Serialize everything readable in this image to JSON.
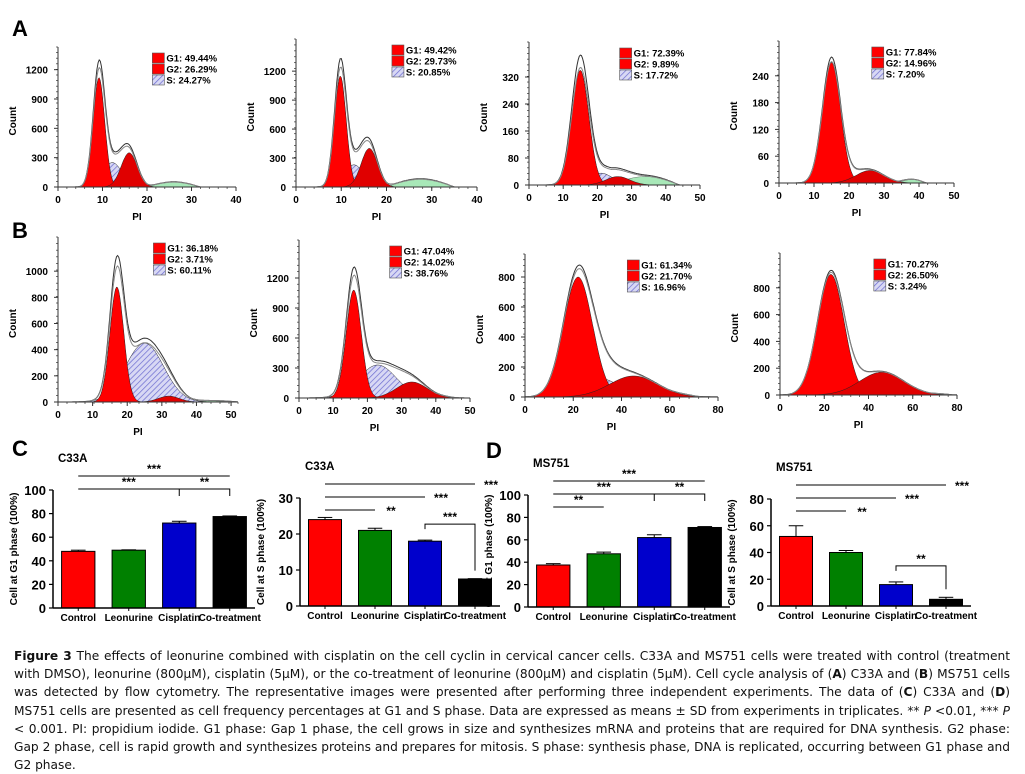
{
  "figure": {
    "panel_letters": [
      "A",
      "B",
      "C",
      "D"
    ]
  },
  "chart_data": [
    {
      "id": "A1",
      "panel": "A",
      "type": "area",
      "title": "",
      "xlabel": "PI",
      "ylabel": "Count",
      "xlim": [
        0,
        40
      ],
      "ylim": [
        0,
        1350
      ],
      "xticks": [
        0,
        10,
        20,
        30,
        40
      ],
      "yticks": [
        0,
        300,
        600,
        900,
        1200
      ],
      "legend": [
        {
          "label": "G1: 49.44%",
          "pattern": "solid-red"
        },
        {
          "label": "G2: 26.29%",
          "pattern": "solid-red"
        },
        {
          "label": "S: 24.27%",
          "pattern": "hatched-blue"
        }
      ],
      "components": {
        "g1": {
          "mean": 9.2,
          "sd": 1.3,
          "peak": 1120
        },
        "g2": {
          "mean": 16,
          "sd": 1.8,
          "peak": 350
        },
        "s": {
          "mean": 12.2,
          "sd": 2.2,
          "peak": 250
        },
        "debris": {
          "from": 20,
          "to": 32,
          "level": 50
        }
      },
      "envelope_peak": 1300
    },
    {
      "id": "A2",
      "panel": "A",
      "type": "area",
      "title": "",
      "xlabel": "PI",
      "ylabel": "Count",
      "xlim": [
        0,
        40
      ],
      "ylim": [
        0,
        1450
      ],
      "xticks": [
        0,
        10,
        20,
        30,
        40
      ],
      "yticks": [
        0,
        300,
        600,
        900,
        1200
      ],
      "legend": [
        {
          "label": "G1: 49.42%",
          "pattern": "solid-red"
        },
        {
          "label": "G2: 29.73%",
          "pattern": "solid-red"
        },
        {
          "label": "S: 20.85%",
          "pattern": "hatched-blue"
        }
      ],
      "components": {
        "g1": {
          "mean": 9.8,
          "sd": 1.3,
          "peak": 1150
        },
        "g2": {
          "mean": 16.2,
          "sd": 1.8,
          "peak": 400
        },
        "s": {
          "mean": 12.8,
          "sd": 2.2,
          "peak": 230
        },
        "debris": {
          "from": 20,
          "to": 35,
          "level": 80
        }
      },
      "envelope_peak": 1330
    },
    {
      "id": "A3",
      "panel": "A",
      "type": "area",
      "title": "",
      "xlabel": "PI",
      "ylabel": "Count",
      "xlim": [
        0,
        50
      ],
      "ylim": [
        0,
        400
      ],
      "xticks": [
        0,
        10,
        20,
        30,
        40,
        50
      ],
      "yticks": [
        0,
        80,
        160,
        240,
        320
      ],
      "legend": [
        {
          "label": "G1: 72.39%",
          "pattern": "solid-red"
        },
        {
          "label": "G2: 9.89%",
          "pattern": "solid-red"
        },
        {
          "label": "S: 17.72%",
          "pattern": "hatched-blue"
        }
      ],
      "components": {
        "g1": {
          "mean": 15,
          "sd": 2.5,
          "peak": 340
        },
        "g2": {
          "mean": 26,
          "sd": 3.5,
          "peak": 25
        },
        "s": {
          "mean": 21,
          "sd": 3.5,
          "peak": 35
        },
        "debris": {
          "from": 24,
          "to": 44,
          "level": 25
        }
      },
      "envelope_peak": 385
    },
    {
      "id": "A4",
      "panel": "A",
      "type": "area",
      "title": "",
      "xlabel": "PI",
      "ylabel": "Count",
      "xlim": [
        0,
        50
      ],
      "ylim": [
        0,
        300
      ],
      "xticks": [
        0,
        10,
        20,
        30,
        40,
        50
      ],
      "yticks": [
        0,
        60,
        120,
        180,
        240
      ],
      "legend": [
        {
          "label": "G1: 77.84%",
          "pattern": "solid-red"
        },
        {
          "label": "G2: 14.96%",
          "pattern": "solid-red"
        },
        {
          "label": "S: 7.20%",
          "pattern": "hatched-blue"
        }
      ],
      "components": {
        "g1": {
          "mean": 15,
          "sd": 2.6,
          "peak": 270
        },
        "g2": {
          "mean": 26,
          "sd": 4,
          "peak": 28
        },
        "s": {
          "mean": 21,
          "sd": 3,
          "peak": 8
        },
        "debris": {
          "from": 34,
          "to": 42,
          "level": 8
        }
      },
      "envelope_peak": 282
    },
    {
      "id": "B1",
      "panel": "B",
      "type": "area",
      "title": "",
      "xlabel": "PI",
      "ylabel": "Count",
      "xlim": [
        0,
        52
      ],
      "ylim": [
        0,
        1200
      ],
      "xticks": [
        0,
        10,
        20,
        30,
        40,
        50
      ],
      "yticks": [
        0,
        200,
        400,
        600,
        800,
        1000
      ],
      "legend": [
        {
          "label": "G1: 36.18%",
          "pattern": "solid-red"
        },
        {
          "label": "G2: 3.71%",
          "pattern": "solid-red"
        },
        {
          "label": "S: 60.11%",
          "pattern": "hatched-blue"
        }
      ],
      "components": {
        "g1": {
          "mean": 17,
          "sd": 2,
          "peak": 880
        },
        "g2": {
          "mean": 32,
          "sd": 3,
          "peak": 45
        },
        "s": {
          "mean": 25,
          "sd": 5.5,
          "peak": 450
        },
        "debris": {
          "from": 38,
          "to": 52,
          "level": 10
        }
      },
      "envelope_peak": 1120
    },
    {
      "id": "B2",
      "panel": "B",
      "type": "area",
      "title": "",
      "xlabel": "PI",
      "ylabel": "Count",
      "xlim": [
        0,
        50
      ],
      "ylim": [
        0,
        1500
      ],
      "xticks": [
        0,
        10,
        20,
        30,
        40,
        50
      ],
      "yticks": [
        0,
        300,
        600,
        900,
        1200
      ],
      "legend": [
        {
          "label": "G1: 47.04%",
          "pattern": "solid-red"
        },
        {
          "label": "G2: 14.02%",
          "pattern": "solid-red"
        },
        {
          "label": "S: 38.76%",
          "pattern": "hatched-blue"
        }
      ],
      "components": {
        "g1": {
          "mean": 16,
          "sd": 2.2,
          "peak": 1080
        },
        "g2": {
          "mean": 33,
          "sd": 4.5,
          "peak": 160
        },
        "s": {
          "mean": 23,
          "sd": 5.5,
          "peak": 330
        },
        "debris": {
          "from": 40,
          "to": 46,
          "level": 5
        }
      },
      "envelope_peak": 1310
    },
    {
      "id": "B3",
      "panel": "B",
      "type": "area",
      "title": "",
      "xlabel": "PI",
      "ylabel": "Count",
      "xlim": [
        0,
        80
      ],
      "ylim": [
        0,
        900
      ],
      "xticks": [
        0,
        20,
        40,
        60,
        80
      ],
      "yticks": [
        0,
        200,
        400,
        600,
        800
      ],
      "legend": [
        {
          "label": "G1: 61.34%",
          "pattern": "solid-red"
        },
        {
          "label": "G2: 21.70%",
          "pattern": "solid-red"
        },
        {
          "label": "S: 16.96%",
          "pattern": "hatched-blue"
        }
      ],
      "components": {
        "g1": {
          "mean": 22,
          "sd": 6,
          "peak": 800
        },
        "g2": {
          "mean": 45,
          "sd": 10,
          "peak": 140
        },
        "s": {
          "mean": 32,
          "sd": 7,
          "peak": 120
        },
        "debris": {
          "from": 60,
          "to": 72,
          "level": 5
        }
      },
      "envelope_peak": 880
    },
    {
      "id": "B4",
      "panel": "B",
      "type": "area",
      "title": "",
      "xlabel": "PI",
      "ylabel": "Count",
      "xlim": [
        0,
        80
      ],
      "ylim": [
        0,
        1000
      ],
      "xticks": [
        0,
        20,
        40,
        60,
        80
      ],
      "yticks": [
        0,
        200,
        400,
        600,
        800
      ],
      "legend": [
        {
          "label": "G1: 70.27%",
          "pattern": "solid-red"
        },
        {
          "label": "G2: 26.50%",
          "pattern": "solid-red"
        },
        {
          "label": "S: 3.24%",
          "pattern": "hatched-blue"
        }
      ],
      "components": {
        "g1": {
          "mean": 23,
          "sd": 6,
          "peak": 900
        },
        "g2": {
          "mean": 46,
          "sd": 10,
          "peak": 170
        },
        "s": {
          "mean": 35,
          "sd": 6,
          "peak": 20
        },
        "debris": {
          "from": 68,
          "to": 78,
          "level": 5
        }
      },
      "envelope_peak": 930
    },
    {
      "id": "C1",
      "panel": "C",
      "type": "bar",
      "title": "C33A",
      "xlabel": "",
      "ylabel": "Cell at G1  phase (100%)",
      "ylim": [
        0,
        100
      ],
      "yticks": [
        0,
        20,
        40,
        60,
        80,
        100
      ],
      "categories": [
        "Control",
        "Leonurine",
        "Cisplatin",
        "Co-treatment"
      ],
      "values": [
        48,
        49,
        72,
        77.5
      ],
      "errors": [
        1,
        0.3,
        1.5,
        0.5
      ],
      "colors": [
        "#ff0000",
        "#008000",
        "#0000cc",
        "#000000"
      ],
      "significance": [
        {
          "from": 0,
          "to": 3,
          "label": "***",
          "style": "line"
        },
        {
          "from": 0,
          "to": 2,
          "label": "***",
          "style": "line"
        },
        {
          "from": 2,
          "to": 3,
          "label": "**",
          "style": "bracket"
        }
      ]
    },
    {
      "id": "C2",
      "panel": "C",
      "type": "bar",
      "title": "C33A",
      "xlabel": "",
      "ylabel": "Cell at S  phase (100%)",
      "ylim": [
        0,
        30
      ],
      "yticks": [
        0,
        10,
        20,
        30
      ],
      "categories": [
        "Control",
        "Leonurine",
        "Cisplatin",
        "Co-treatment"
      ],
      "values": [
        24,
        21,
        18,
        7.5
      ],
      "errors": [
        0.6,
        0.6,
        0.3,
        0.1
      ],
      "colors": [
        "#ff0000",
        "#008000",
        "#0000cc",
        "#000000"
      ],
      "significance": [
        {
          "from": 0,
          "to": 3,
          "label": "***",
          "style": "line"
        },
        {
          "from": 0,
          "to": 2,
          "label": "***",
          "style": "line"
        },
        {
          "from": 0,
          "to": 1,
          "label": "**",
          "style": "line"
        },
        {
          "from": 2,
          "to": 3,
          "label": "***",
          "style": "bracket"
        }
      ]
    },
    {
      "id": "D1",
      "panel": "D",
      "type": "bar",
      "title": "MS751",
      "xlabel": "",
      "ylabel": "Cell at G1  phase (100%)",
      "ylim": [
        0,
        100
      ],
      "yticks": [
        0,
        20,
        40,
        60,
        80,
        100
      ],
      "categories": [
        "Control",
        "Leonurine",
        "Cisplatin",
        "Co-treatment"
      ],
      "values": [
        37.5,
        47.5,
        62,
        71
      ],
      "errors": [
        1.2,
        1.5,
        2.5,
        0.8
      ],
      "colors": [
        "#ff0000",
        "#008000",
        "#0000cc",
        "#000000"
      ],
      "significance": [
        {
          "from": 0,
          "to": 3,
          "label": "***",
          "style": "line"
        },
        {
          "from": 0,
          "to": 2,
          "label": "***",
          "style": "line"
        },
        {
          "from": 0,
          "to": 1,
          "label": "**",
          "style": "line"
        },
        {
          "from": 2,
          "to": 3,
          "label": "**",
          "style": "bracket"
        }
      ]
    },
    {
      "id": "D2",
      "panel": "D",
      "type": "bar",
      "title": "MS751",
      "xlabel": "",
      "ylabel": "Cell at S  phase (100%)",
      "ylim": [
        0,
        80
      ],
      "yticks": [
        0,
        20,
        40,
        60,
        80
      ],
      "categories": [
        "Control",
        "Leonurine",
        "Cisplatin",
        "Co-treatment"
      ],
      "values": [
        52,
        40,
        16,
        5
      ],
      "errors": [
        8,
        1.5,
        2,
        1.5
      ],
      "colors": [
        "#ff0000",
        "#008000",
        "#0000cc",
        "#000000"
      ],
      "significance": [
        {
          "from": 0,
          "to": 3,
          "label": "***",
          "style": "line"
        },
        {
          "from": 0,
          "to": 2,
          "label": "***",
          "style": "line"
        },
        {
          "from": 0,
          "to": 1,
          "label": "**",
          "style": "line"
        },
        {
          "from": 2,
          "to": 3,
          "label": "**",
          "style": "bracket"
        }
      ]
    }
  ],
  "colors": {
    "g1_fill": "#ff0000",
    "g2_fill": "#e00000",
    "s_hatch": "#6a6ad0",
    "s_bg": "#d8d8f4",
    "debris_fill": "#a8e8b8",
    "envelope": "#333333"
  },
  "caption": {
    "label": "Figure 3",
    "p1": " The effects of leonurine combined with cisplatin on the cell cyclin in cervical cancer cells. C33A and MS751 cells were treated with control (treatment with DMSO), leonurine (800μM), cisplatin (5μM), or the co-treatment of leonurine (800μM) and cisplatin (5μM). Cell cycle analysis of (",
    "A": "A",
    "p2": ") C33A and (",
    "B": "B",
    "p3": ") MS751 cells was detected by flow cytometry. The representative images were presented after performing three independent experiments. The data of (",
    "C": "C",
    "p4": ") C33A and (",
    "D": "D",
    "p5": ") MS751 cells are presented as cell frequency percentages at G1 and S phase. Data are expressed as means ± SD from experiments in triplicates. ** ",
    "P1": "P",
    "p6": " <0.01, *** ",
    "P2": "P",
    "p7": " < 0.001. PI: propidium iodide. G1 phase: Gap 1 phase, the cell grows in size and synthesizes mRNA and proteins that are required for DNA synthesis. G2 phase: Gap 2 phase, cell is rapid growth and synthesizes proteins and prepares for mitosis. S phase: synthesis phase, DNA is replicated, occurring between G1 phase and G2 phase."
  }
}
